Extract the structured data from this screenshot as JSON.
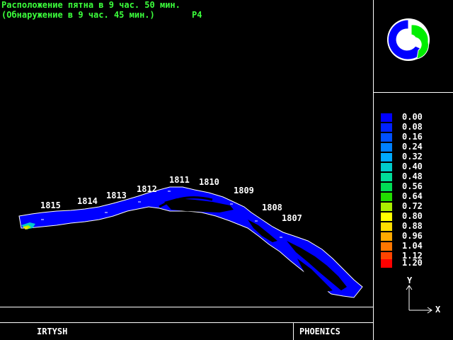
{
  "header": {
    "line1": "Расположение пятна в 9 час. 50 мин.",
    "line2": "(Обнаружение в 9 час. 45 мин.)",
    "tag": "P4"
  },
  "river_labels": [
    "1815",
    "1814",
    "1813",
    "1812",
    "1811",
    "1810",
    "1809",
    "1808",
    "1807"
  ],
  "legend": [
    {
      "value": "0.00",
      "color": "#0000ff"
    },
    {
      "value": "0.08",
      "color": "#0022ff"
    },
    {
      "value": "0.16",
      "color": "#0050ff"
    },
    {
      "value": "0.24",
      "color": "#0080ff"
    },
    {
      "value": "0.32",
      "color": "#00aaff"
    },
    {
      "value": "0.40",
      "color": "#00cccc"
    },
    {
      "value": "0.48",
      "color": "#00dd99"
    },
    {
      "value": "0.56",
      "color": "#00dd55"
    },
    {
      "value": "0.64",
      "color": "#22dd00"
    },
    {
      "value": "0.72",
      "color": "#aaee00"
    },
    {
      "value": "0.80",
      "color": "#ffff00"
    },
    {
      "value": "0.88",
      "color": "#ffdd00"
    },
    {
      "value": "0.96",
      "color": "#ffaa00"
    },
    {
      "value": "1.04",
      "color": "#ff7700"
    },
    {
      "value": "1.12",
      "color": "#ff4400"
    },
    {
      "value": "1.20",
      "color": "#ff0000"
    }
  ],
  "axes": {
    "y": "Y",
    "x": "X"
  },
  "footer": {
    "left": "IRTYSH",
    "right": "PHOENICS"
  },
  "logo": {
    "name": "phoenics-logo-icon",
    "colors": [
      "#0000ff",
      "#00ee00"
    ]
  }
}
